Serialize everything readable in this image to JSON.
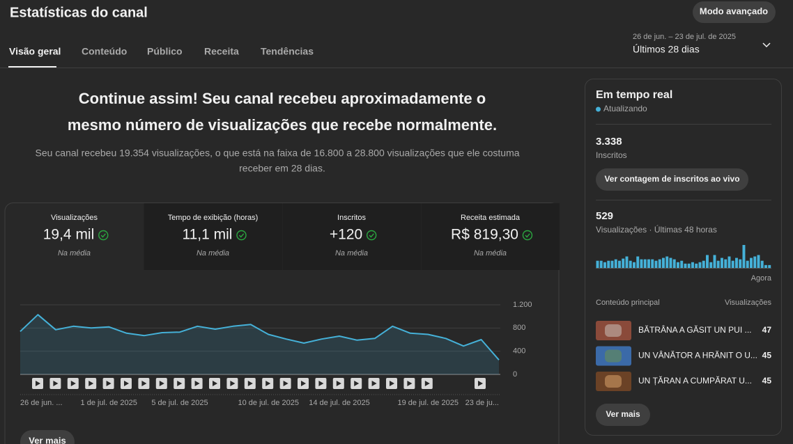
{
  "header": {
    "title": "Estatísticas do canal",
    "mode_button": "Modo avançado"
  },
  "tabs": [
    "Visão geral",
    "Conteúdo",
    "Público",
    "Receita",
    "Tendências"
  ],
  "date_range": {
    "dates": "26 de jun. – 23 de jul. de 2025",
    "label": "Últimos 28 dias"
  },
  "summary": {
    "headline": [
      "Continue assim! Seu canal recebeu aproximadamente o",
      "mesmo número de visualizações que recebe normalmente."
    ],
    "text": [
      "Seu canal recebeu 19.354 visualizações, o que está na faixa de 16.800 a 28.800 visualizações que ele costuma",
      "receber em 28 dias."
    ]
  },
  "metrics": [
    {
      "label": "Visualizações",
      "value": "19,4 mil",
      "note": "Na média"
    },
    {
      "label": "Tempo de exibição (horas)",
      "value": "11,1 mil",
      "note": "Na média"
    },
    {
      "label": "Inscritos",
      "value": "+120",
      "note": "Na média"
    },
    {
      "label": "Receita estimada",
      "value": "R$ 819,30",
      "note": "Na média"
    }
  ],
  "more_button": "Ver mais",
  "chart_data": [
    {
      "type": "area",
      "categories": [
        "26 de jun. ...",
        null,
        null,
        null,
        null,
        "1 de jul. de 2025",
        null,
        null,
        null,
        "5 de jul. de 2025",
        null,
        null,
        null,
        null,
        "10 de jul. de 2025",
        null,
        null,
        null,
        "14 de jul. de 2025",
        null,
        null,
        null,
        null,
        "19 de jul. de 2025",
        null,
        null,
        null,
        "23 de ju..."
      ],
      "values": [
        740,
        1030,
        770,
        830,
        800,
        820,
        710,
        670,
        720,
        730,
        830,
        780,
        830,
        860,
        690,
        610,
        540,
        610,
        660,
        590,
        620,
        830,
        710,
        690,
        620,
        490,
        600,
        250
      ],
      "color": "#45b1d8",
      "ylim": [
        0,
        1200
      ],
      "yticks": [
        0,
        400,
        800,
        {
          "value": 1200,
          "label": "1.200"
        }
      ],
      "grid": true
    },
    {
      "type": "bar",
      "categories": [
        null,
        null,
        null,
        null,
        null,
        null,
        null,
        null,
        null,
        null,
        null,
        null,
        null,
        null,
        null,
        null,
        null,
        null,
        null,
        null,
        null,
        null,
        null,
        null,
        null,
        null,
        null,
        null,
        null,
        null,
        null,
        null,
        null,
        null,
        null,
        null,
        null,
        null,
        null,
        null,
        null,
        null,
        null,
        null,
        null,
        null,
        null,
        "Agora"
      ],
      "values": [
        10,
        10,
        8,
        10,
        10,
        12,
        10,
        13,
        16,
        10,
        8,
        16,
        12,
        12,
        12,
        12,
        10,
        12,
        14,
        16,
        14,
        12,
        8,
        10,
        6,
        6,
        8,
        6,
        8,
        10,
        18,
        8,
        18,
        10,
        14,
        12,
        16,
        10,
        14,
        12,
        32,
        10,
        14,
        16,
        18,
        10,
        4,
        4
      ],
      "color": "#45b1d8"
    }
  ],
  "realtime": {
    "title": "Em tempo real",
    "status": "Atualizando",
    "subscribers": "3.338",
    "subscribers_label": "Inscritos",
    "live_button": "Ver contagem de inscritos ao vivo",
    "views": "529",
    "views_label": "Visualizações · Últimas 48 horas",
    "top_content": {
      "header": "Conteúdo principal",
      "views_header": "Visualizações",
      "items": [
        {
          "title": "BĂTRÂNA A GĂSIT UN PUI ...",
          "views": 47
        },
        {
          "title": "UN VÂNĂTOR A HRĂNIT O U...",
          "views": 45
        },
        {
          "title": "UN ȚĂRAN A CUMPĂRAT U...",
          "views": 45
        }
      ]
    },
    "more_button": "Ver mais"
  }
}
